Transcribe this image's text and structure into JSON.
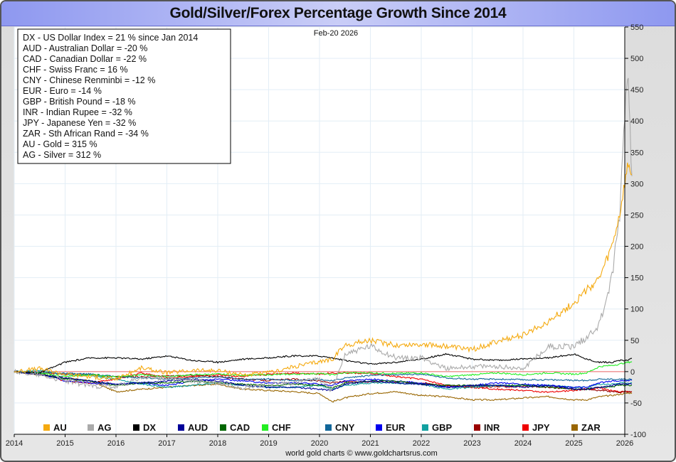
{
  "title": "Gold/Silver/Forex Percentage Growth Since 2014",
  "date_label": "Feb-20  2026",
  "credit": "world gold charts © www.goldchartsrus.com",
  "info_box": [
    "DX - US Dollar Index = 21 % since Jan 2014",
    "AUD - Australian Dollar = -20 %",
    "CAD - Canadian Dollar = -22 %",
    "CHF - Swiss Franc = 16 %",
    "CNY - Chinese Renminbi = -12 %",
    "EUR - Euro = -14 %",
    "GBP - British Pound = -18 %",
    "INR - Indian Rupee = -32 %",
    "JPY - Japanese Yen = -32 %",
    "ZAR - Sth African Rand = -34 %",
    "AU - Gold = 315 %",
    "AG - Silver = 312 %"
  ],
  "chart_data": {
    "type": "line",
    "title": "Gold/Silver/Forex Percentage Growth Since 2014",
    "xlabel": "",
    "ylabel": "",
    "x_ticks": [
      "2014",
      "2015",
      "2016",
      "2017",
      "2018",
      "2019",
      "2020",
      "2021",
      "2022",
      "2023",
      "2024",
      "2025",
      "2026"
    ],
    "xlim": [
      2014.0,
      2026.14
    ],
    "ylim": [
      -100,
      550
    ],
    "y_ticks": [
      -100,
      -50,
      0,
      50,
      100,
      150,
      200,
      250,
      300,
      350,
      400,
      450,
      500,
      550
    ],
    "y_axis_side": "right",
    "grid": true,
    "reference_line": 0,
    "legend_position": "bottom",
    "x": [
      2014.0,
      2014.5,
      2015.0,
      2015.5,
      2016.0,
      2016.5,
      2017.0,
      2017.5,
      2018.0,
      2018.5,
      2019.0,
      2019.5,
      2020.0,
      2020.25,
      2020.5,
      2021.0,
      2021.5,
      2022.0,
      2022.5,
      2023.0,
      2023.5,
      2024.0,
      2024.5,
      2025.0,
      2025.25,
      2025.5,
      2025.75,
      2025.9,
      2026.0,
      2026.07,
      2026.14
    ],
    "series": [
      {
        "name": "AU",
        "color": "#f5aa10",
        "values": [
          0,
          5,
          -4,
          -8,
          -12,
          6,
          -2,
          2,
          2,
          -5,
          -2,
          8,
          16,
          20,
          42,
          50,
          42,
          44,
          40,
          35,
          48,
          58,
          80,
          110,
          130,
          148,
          200,
          250,
          300,
          330,
          315
        ]
      },
      {
        "name": "AG",
        "color": "#aaaaaa",
        "values": [
          0,
          -5,
          -15,
          -22,
          -25,
          -10,
          -10,
          -15,
          -18,
          -25,
          -20,
          -18,
          -12,
          -30,
          28,
          40,
          22,
          22,
          5,
          8,
          8,
          5,
          40,
          40,
          55,
          75,
          150,
          250,
          420,
          470,
          312
        ]
      },
      {
        "name": "DX",
        "color": "#000000",
        "values": [
          0,
          -2,
          15,
          22,
          22,
          20,
          25,
          18,
          15,
          20,
          22,
          25,
          25,
          22,
          18,
          12,
          15,
          20,
          28,
          20,
          18,
          20,
          22,
          28,
          20,
          15,
          15,
          18,
          18,
          18,
          21
        ]
      },
      {
        "name": "AUD",
        "color": "#000099",
        "values": [
          0,
          -5,
          -10,
          -15,
          -20,
          -18,
          -15,
          -12,
          -15,
          -22,
          -25,
          -25,
          -28,
          -30,
          -20,
          -15,
          -18,
          -20,
          -25,
          -22,
          -22,
          -25,
          -22,
          -28,
          -28,
          -25,
          -22,
          -20,
          -20,
          -20,
          -20
        ]
      },
      {
        "name": "CAD",
        "color": "#006600",
        "values": [
          0,
          -3,
          -12,
          -15,
          -22,
          -18,
          -18,
          -15,
          -18,
          -20,
          -22,
          -20,
          -22,
          -26,
          -18,
          -15,
          -15,
          -20,
          -22,
          -22,
          -22,
          -22,
          -25,
          -28,
          -28,
          -25,
          -24,
          -22,
          -22,
          -22,
          -22
        ]
      },
      {
        "name": "CHF",
        "color": "#22ee22",
        "values": [
          0,
          -2,
          -8,
          -5,
          -8,
          -5,
          -8,
          -5,
          -4,
          -6,
          -5,
          -4,
          -3,
          -5,
          -2,
          -2,
          -3,
          -2,
          -8,
          -5,
          -2,
          -5,
          -2,
          -4,
          -2,
          8,
          10,
          12,
          14,
          15,
          16
        ]
      },
      {
        "name": "CNY",
        "color": "#116699",
        "values": [
          0,
          -1,
          -3,
          -4,
          -8,
          -10,
          -12,
          -10,
          -8,
          -12,
          -12,
          -14,
          -12,
          -15,
          -10,
          -6,
          -5,
          -4,
          -10,
          -12,
          -12,
          -13,
          -13,
          -14,
          -14,
          -12,
          -12,
          -12,
          -12,
          -12,
          -12
        ]
      },
      {
        "name": "EUR",
        "color": "#0000ee",
        "values": [
          0,
          -3,
          -15,
          -18,
          -20,
          -18,
          -22,
          -15,
          -12,
          -15,
          -18,
          -18,
          -20,
          -22,
          -15,
          -12,
          -15,
          -18,
          -25,
          -22,
          -18,
          -20,
          -22,
          -25,
          -25,
          -18,
          -15,
          -15,
          -14,
          -14,
          -14
        ]
      },
      {
        "name": "GBP",
        "color": "#11a0a0",
        "values": [
          0,
          2,
          -5,
          -6,
          -12,
          -20,
          -25,
          -22,
          -18,
          -22,
          -25,
          -25,
          -22,
          -28,
          -22,
          -18,
          -18,
          -20,
          -28,
          -25,
          -22,
          -22,
          -22,
          -25,
          -25,
          -20,
          -20,
          -18,
          -18,
          -18,
          -18
        ]
      },
      {
        "name": "INR",
        "color": "#990000",
        "values": [
          0,
          -2,
          -4,
          -5,
          -8,
          -8,
          -7,
          -6,
          -8,
          -12,
          -14,
          -12,
          -15,
          -18,
          -16,
          -16,
          -17,
          -18,
          -22,
          -24,
          -24,
          -24,
          -25,
          -28,
          -28,
          -30,
          -32,
          -33,
          -32,
          -32,
          -32
        ]
      },
      {
        "name": "JPY",
        "color": "#ee0000",
        "values": [
          0,
          -3,
          -15,
          -18,
          -12,
          -2,
          -10,
          -8,
          -5,
          -8,
          -4,
          -2,
          -4,
          -2,
          -2,
          -3,
          -8,
          -12,
          -22,
          -25,
          -28,
          -30,
          -33,
          -30,
          -28,
          -26,
          -30,
          -32,
          -32,
          -32,
          -32
        ]
      },
      {
        "name": "ZAR",
        "color": "#996600",
        "values": [
          0,
          -5,
          -10,
          -15,
          -32,
          -28,
          -25,
          -22,
          -20,
          -28,
          -30,
          -32,
          -35,
          -48,
          -42,
          -35,
          -32,
          -38,
          -40,
          -45,
          -45,
          -42,
          -40,
          -45,
          -45,
          -40,
          -38,
          -36,
          -35,
          -34,
          -34
        ]
      }
    ]
  }
}
